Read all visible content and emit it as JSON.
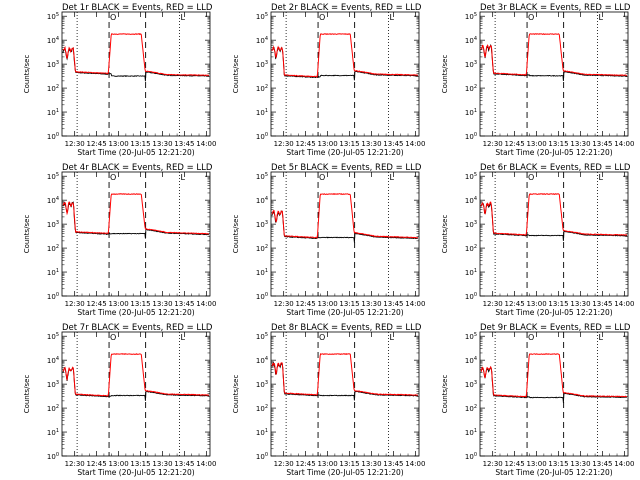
{
  "chart_data": {
    "type": "line",
    "layout": "3x3 grid",
    "ylabel": "Counts/sec",
    "xlabel": "Start Time (20-Jul-05 12:21:20)",
    "x_ticks": [
      "12:30",
      "12:45",
      "13:00",
      "13:15",
      "13:30",
      "13:45",
      "14:00"
    ],
    "y_scale": "log",
    "y_ticks": [
      {
        "value": 1,
        "exponent": "0"
      },
      {
        "value": 10,
        "exponent": "1"
      },
      {
        "value": 100,
        "exponent": "2"
      },
      {
        "value": 1000,
        "exponent": "3"
      },
      {
        "value": 10000,
        "exponent": "4"
      },
      {
        "value": 100000,
        "exponent": "5"
      }
    ],
    "x_range": [
      "12:21:20",
      "14:02:30"
    ],
    "y_range": [
      1,
      150000
    ],
    "series_colors": {
      "events": "#000000",
      "lld": "#ff0000"
    },
    "marker_lines": {
      "dotted": [
        "12:31:40",
        "13:41:40"
      ],
      "dashed": [
        "12:53:30",
        "13:18:30"
      ]
    },
    "attenuator_markers": [
      {
        "time": "12:53:30",
        "label": "O"
      },
      {
        "time": "13:41:40",
        "label": "L"
      }
    ],
    "panels": [
      {
        "title": "Det 1r BLACK = Events, RED = LLD",
        "pre_level": 480,
        "post_level": 380,
        "end_level": 360,
        "lld_flat": 18000,
        "early_peak": 5500
      },
      {
        "title": "Det 2r BLACK = Events, RED = LLD",
        "pre_level": 350,
        "post_level": 400,
        "end_level": 370,
        "lld_flat": 18000,
        "early_peak": 6000
      },
      {
        "title": "Det 3r BLACK = Events, RED = LLD",
        "pre_level": 420,
        "post_level": 390,
        "end_level": 360,
        "lld_flat": 18000,
        "early_peak": 7000
      },
      {
        "title": "Det 4r BLACK = Events, RED = LLD",
        "pre_level": 480,
        "post_level": 480,
        "end_level": 420,
        "lld_flat": 18000,
        "early_peak": 9500
      },
      {
        "title": "Det 5r BLACK = Events, RED = LLD",
        "pre_level": 320,
        "post_level": 330,
        "end_level": 290,
        "lld_flat": 18000,
        "early_peak": 4000
      },
      {
        "title": "Det 6r BLACK = Events, RED = LLD",
        "pre_level": 420,
        "post_level": 400,
        "end_level": 370,
        "lld_flat": 18000,
        "early_peak": 9000
      },
      {
        "title": "Det 7r BLACK = Events, RED = LLD",
        "pre_level": 380,
        "post_level": 400,
        "end_level": 370,
        "lld_flat": 18000,
        "early_peak": 5500
      },
      {
        "title": "Det 8r BLACK = Events, RED = LLD",
        "pre_level": 420,
        "post_level": 400,
        "end_level": 370,
        "lld_flat": 18000,
        "early_peak": 9000
      },
      {
        "title": "Det 9r BLACK = Events, RED = LLD",
        "pre_level": 350,
        "post_level": 330,
        "end_level": 320,
        "lld_flat": 18000,
        "early_peak": 6000
      }
    ]
  }
}
